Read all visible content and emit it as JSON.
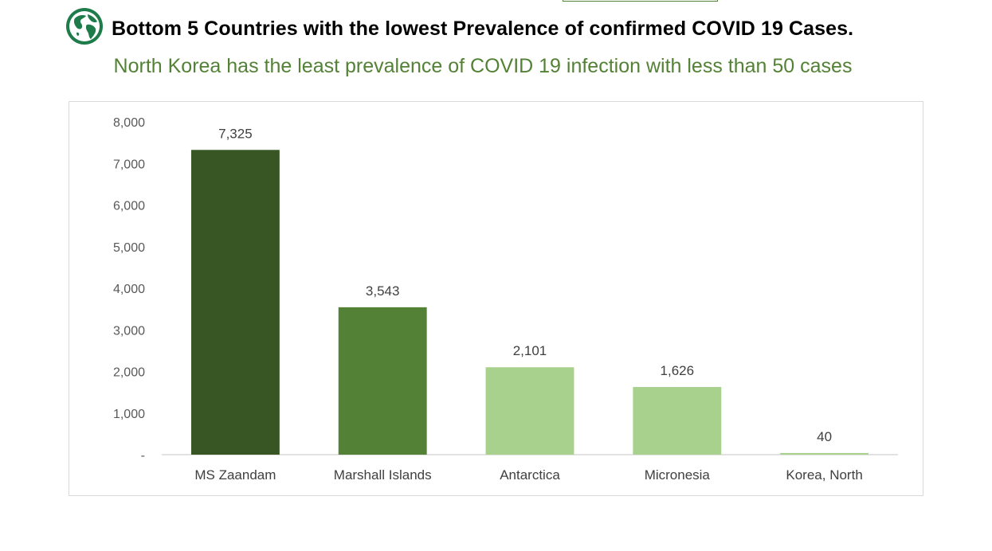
{
  "header": {
    "title": "Bottom 5 Countries with the lowest Prevalence of confirmed COVID 19 Cases.",
    "subtitle": "North Korea has the least prevalence of COVID 19 infection with less than 50 cases",
    "icon": "globe-icon"
  },
  "colors": {
    "title": "#000000",
    "subtitle": "#538135",
    "dark_green": "#375623",
    "mid_green": "#538135",
    "light_green": "#a9d18e"
  },
  "chart_data": {
    "type": "bar",
    "title": "",
    "xlabel": "",
    "ylabel": "",
    "ylim": [
      0,
      8000
    ],
    "grid": false,
    "categories": [
      "MS Zaandam",
      "Marshall Islands",
      "Antarctica",
      "Micronesia",
      "Korea, North"
    ],
    "values": [
      7325,
      3543,
      2101,
      1626,
      40
    ],
    "data_labels": [
      "7,325",
      "3,543",
      "2,101",
      "1,626",
      "40"
    ],
    "bar_colors": [
      "#375623",
      "#538135",
      "#a9d18e",
      "#a9d18e",
      "#a9d18e"
    ],
    "y_ticks": [
      0,
      1000,
      2000,
      3000,
      4000,
      5000,
      6000,
      7000,
      8000
    ],
    "y_tick_labels": [
      "-",
      "1,000",
      "2,000",
      "3,000",
      "4,000",
      "5,000",
      "6,000",
      "7,000",
      "8,000"
    ]
  }
}
